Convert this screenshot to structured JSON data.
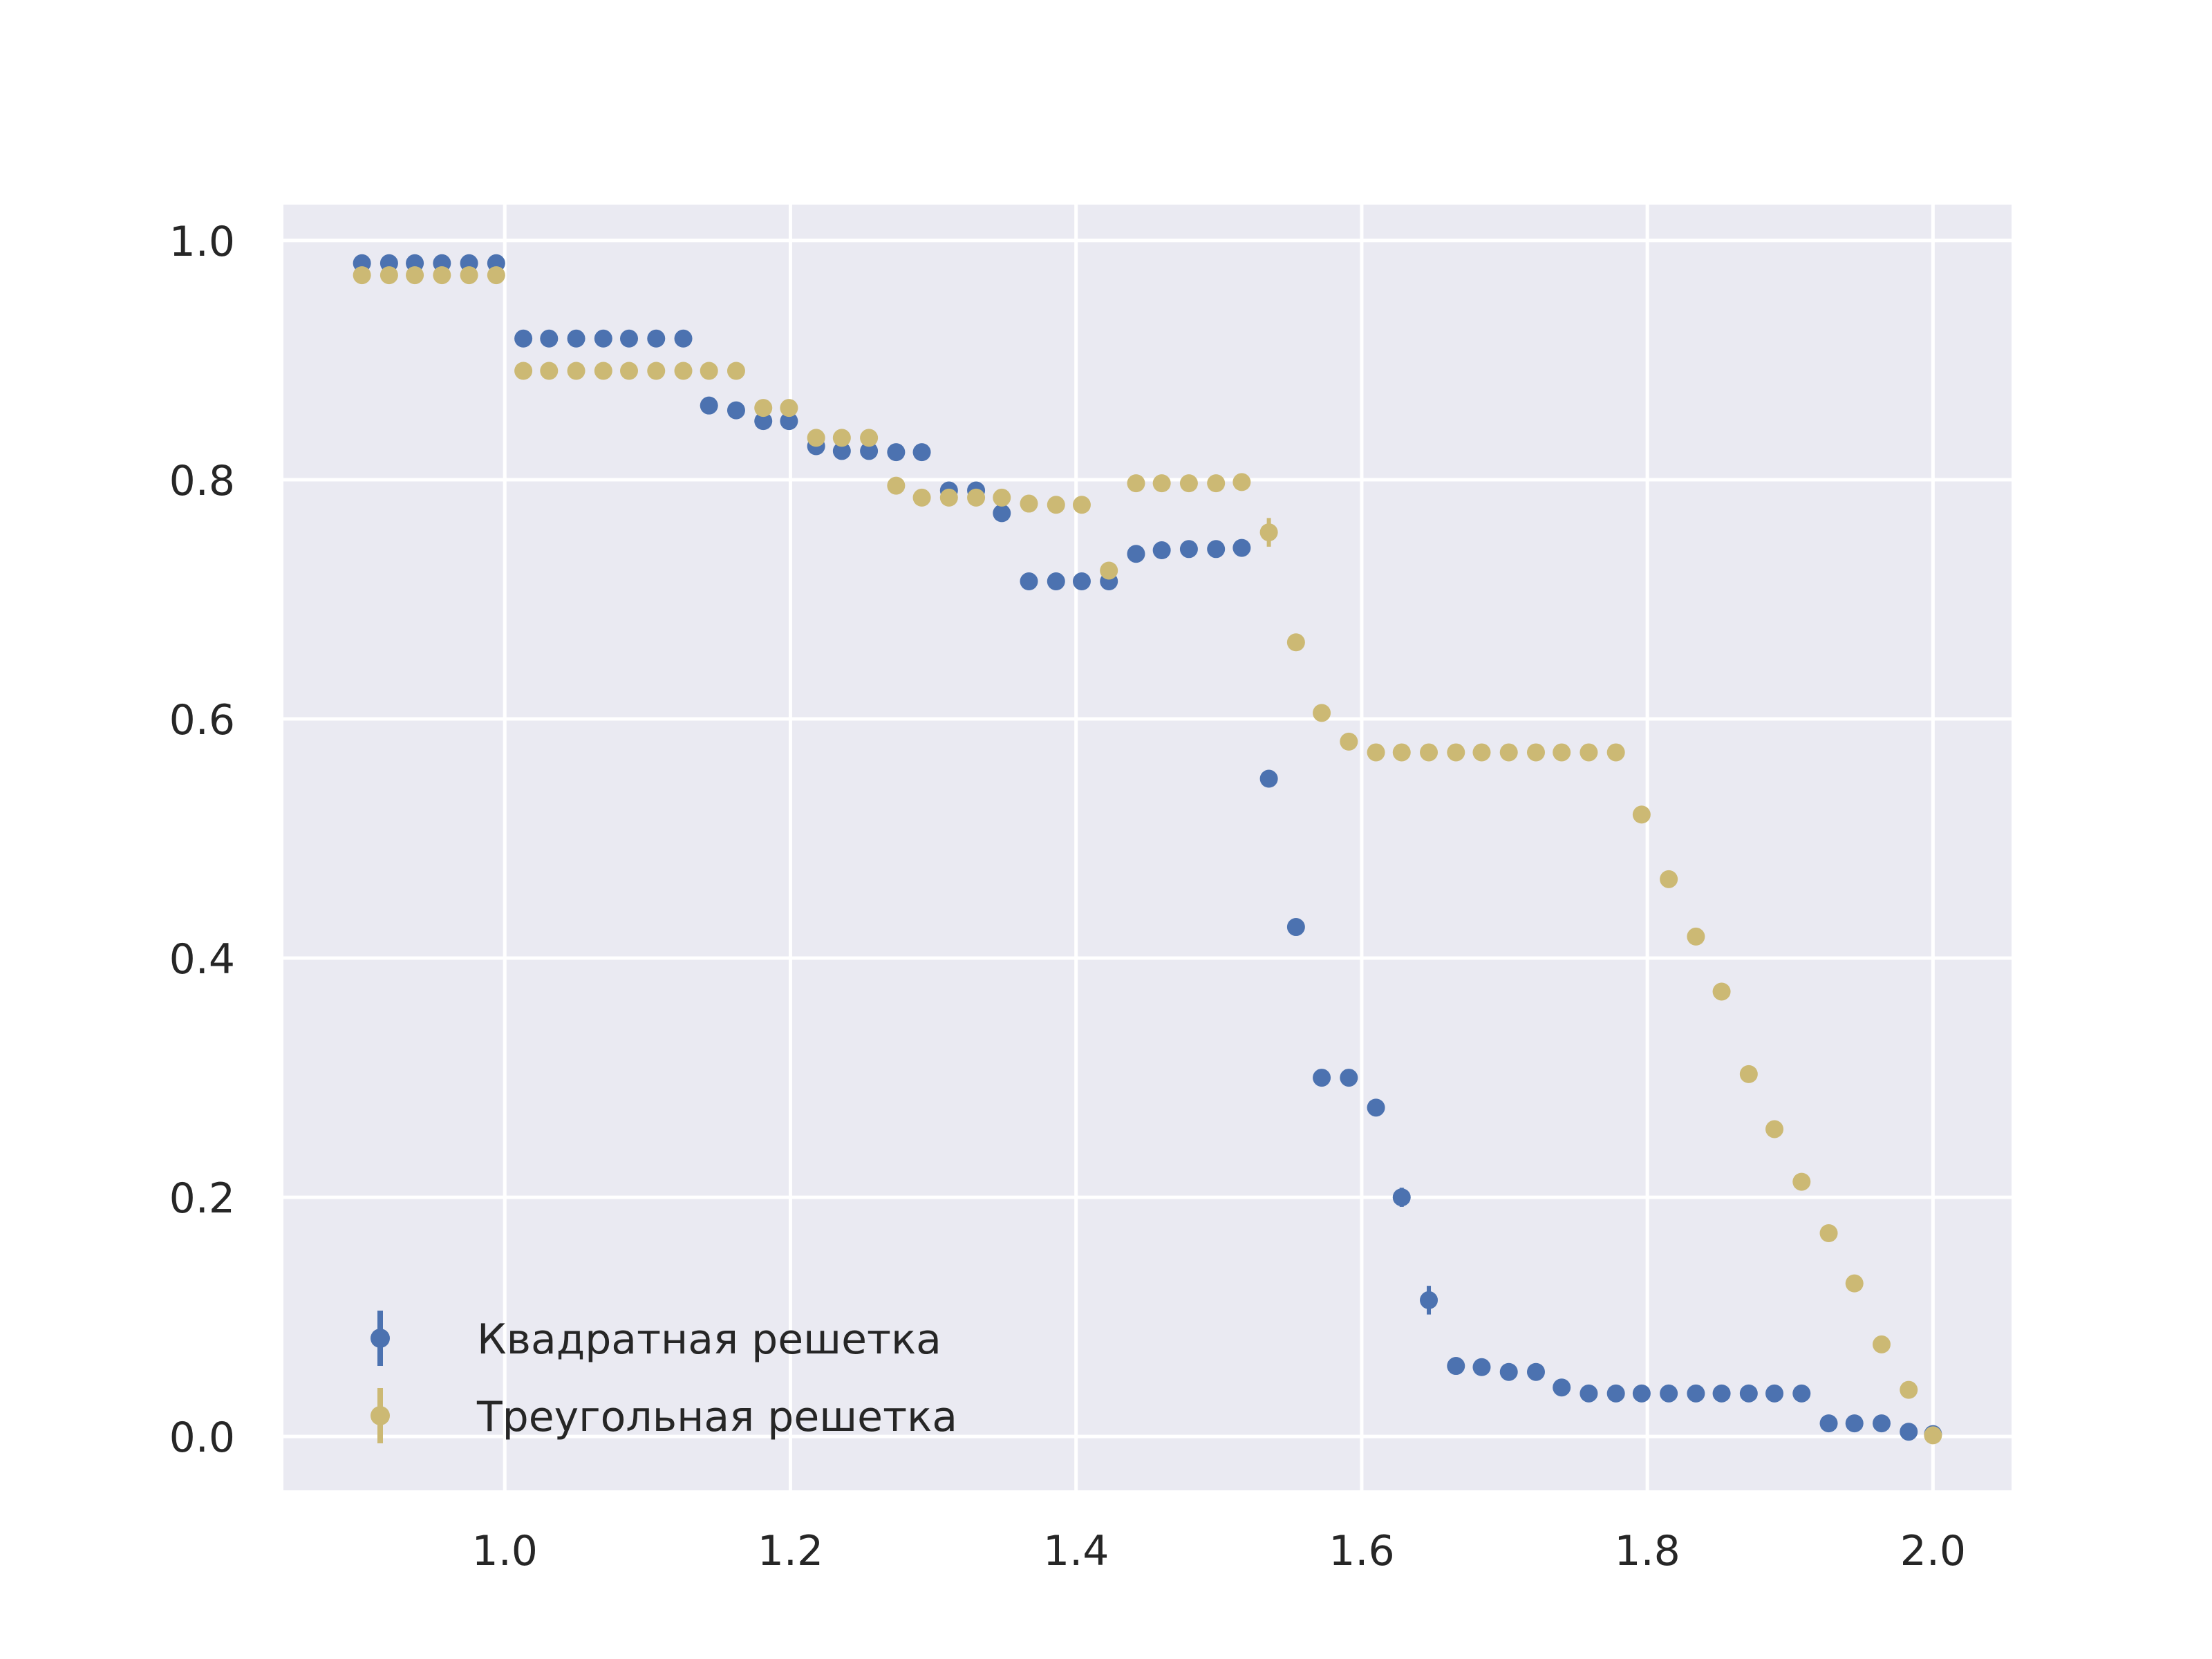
{
  "chart_data": {
    "type": "scatter",
    "title": "",
    "xlabel": "",
    "ylabel": "",
    "xlim": [
      0.845,
      2.055
    ],
    "ylim": [
      -0.045,
      1.03
    ],
    "grid": true,
    "legend_position": "lower-left",
    "x_ticks": [
      "1.0",
      "1.2",
      "1.4",
      "1.6",
      "1.8",
      "2.0"
    ],
    "y_ticks": [
      "0.0",
      "0.2",
      "0.4",
      "0.6",
      "0.8",
      "1.0"
    ],
    "x": [
      0.9,
      0.919,
      0.937,
      0.956,
      0.975,
      0.994,
      1.013,
      1.031,
      1.05,
      1.069,
      1.087,
      1.106,
      1.125,
      1.143,
      1.162,
      1.181,
      1.199,
      1.218,
      1.236,
      1.255,
      1.274,
      1.292,
      1.311,
      1.33,
      1.348,
      1.367,
      1.386,
      1.404,
      1.423,
      1.442,
      1.46,
      1.479,
      1.498,
      1.516,
      1.535,
      1.554,
      1.572,
      1.591,
      1.61,
      1.628,
      1.647,
      1.666,
      1.684,
      1.703,
      1.722,
      1.74,
      1.759,
      1.778,
      1.796,
      1.815,
      1.834,
      1.852,
      1.871,
      1.889,
      1.908,
      1.927,
      1.945,
      1.964,
      1.983,
      2.0
    ],
    "series": [
      {
        "name": "Квадратная решетка",
        "color": "#4c72b0",
        "values": [
          0.981,
          0.981,
          0.981,
          0.981,
          0.981,
          0.981,
          0.918,
          0.918,
          0.918,
          0.918,
          0.918,
          0.918,
          0.918,
          0.862,
          0.858,
          0.849,
          0.849,
          0.828,
          0.824,
          0.824,
          0.823,
          0.823,
          0.791,
          0.791,
          0.772,
          0.715,
          0.715,
          0.715,
          0.715,
          0.738,
          0.741,
          0.742,
          0.742,
          0.743,
          0.55,
          0.426,
          0.3,
          0.3,
          0.275,
          0.2,
          0.114,
          0.059,
          0.058,
          0.054,
          0.054,
          0.041,
          0.036,
          0.036,
          0.036,
          0.036,
          0.036,
          0.036,
          0.036,
          0.036,
          0.036,
          0.011,
          0.011,
          0.011,
          0.004,
          0.002
        ],
        "errors": [
          0,
          0,
          0,
          0,
          0,
          0,
          0,
          0,
          0,
          0,
          0,
          0,
          0,
          0,
          0,
          0,
          0,
          0,
          0,
          0,
          0,
          0,
          0,
          0,
          0,
          0,
          0,
          0,
          0,
          0,
          0,
          0,
          0,
          0,
          0,
          0,
          0,
          0,
          0,
          0.008,
          0.012,
          0,
          0,
          0,
          0,
          0,
          0,
          0,
          0,
          0,
          0,
          0,
          0,
          0,
          0,
          0,
          0,
          0,
          0,
          0
        ]
      },
      {
        "name": "Треугольная решетка",
        "color": "#ccb974",
        "values": [
          0.971,
          0.971,
          0.971,
          0.971,
          0.971,
          0.971,
          0.891,
          0.891,
          0.891,
          0.891,
          0.891,
          0.891,
          0.891,
          0.891,
          0.891,
          0.86,
          0.86,
          0.835,
          0.835,
          0.835,
          0.795,
          0.785,
          0.785,
          0.785,
          0.785,
          0.78,
          0.779,
          0.779,
          0.724,
          0.797,
          0.797,
          0.797,
          0.797,
          0.798,
          0.756,
          0.664,
          0.605,
          0.581,
          0.572,
          0.572,
          0.572,
          0.572,
          0.572,
          0.572,
          0.572,
          0.572,
          0.572,
          0.572,
          0.52,
          0.466,
          0.418,
          0.372,
          0.303,
          0.257,
          0.213,
          0.17,
          0.128,
          0.077,
          0.039,
          0.001
        ],
        "errors": [
          0,
          0,
          0,
          0,
          0,
          0,
          0,
          0,
          0,
          0,
          0,
          0,
          0,
          0,
          0,
          0,
          0,
          0,
          0,
          0,
          0,
          0,
          0,
          0,
          0,
          0,
          0,
          0,
          0,
          0,
          0,
          0,
          0,
          0,
          0.012,
          0,
          0,
          0,
          0,
          0,
          0,
          0,
          0,
          0,
          0,
          0,
          0,
          0,
          0,
          0,
          0,
          0,
          0,
          0,
          0,
          0,
          0,
          0,
          0,
          0
        ]
      }
    ]
  }
}
